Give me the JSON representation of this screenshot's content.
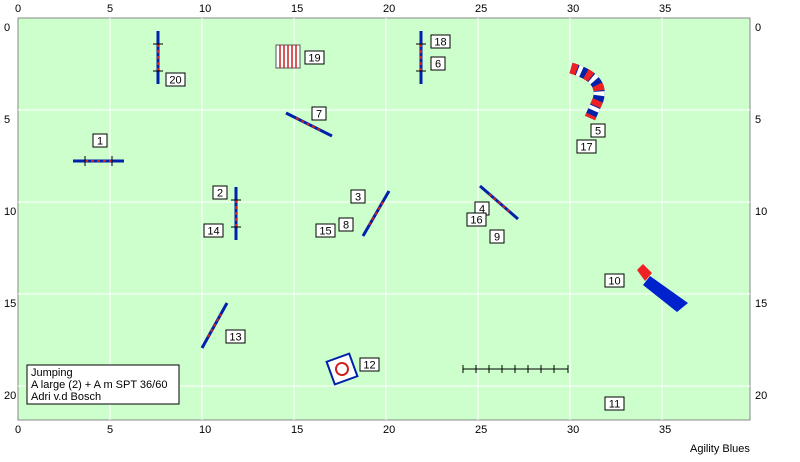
{
  "axes": {
    "x_ticks": [
      0,
      5,
      10,
      15,
      20,
      25,
      30,
      35
    ],
    "y_ticks": [
      0,
      5,
      10,
      15,
      20
    ]
  },
  "obstacles": [
    {
      "label": "1"
    },
    {
      "label": "2"
    },
    {
      "label": "3"
    },
    {
      "label": "4"
    },
    {
      "label": "5"
    },
    {
      "label": "6"
    },
    {
      "label": "7"
    },
    {
      "label": "8"
    },
    {
      "label": "9"
    },
    {
      "label": "10"
    },
    {
      "label": "11"
    },
    {
      "label": "12"
    },
    {
      "label": "13"
    },
    {
      "label": "14"
    },
    {
      "label": "15"
    },
    {
      "label": "16"
    },
    {
      "label": "17"
    },
    {
      "label": "18"
    },
    {
      "label": "19"
    },
    {
      "label": "20"
    }
  ],
  "info": {
    "lines": [
      "Jumping",
      "A large (2) + A m SPT 36/60",
      "Adri v.d Bosch"
    ]
  },
  "footer": "Agility Blues"
}
